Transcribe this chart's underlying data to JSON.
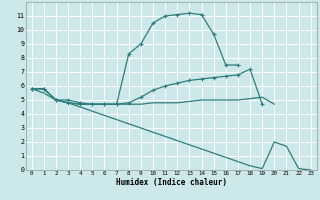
{
  "xlabel": "Humidex (Indice chaleur)",
  "bg_color": "#cce8ea",
  "grid_color": "#ffffff",
  "line_color": "#2e7d7d",
  "xlim": [
    -0.5,
    23.5
  ],
  "ylim": [
    0,
    12
  ],
  "xticks": [
    0,
    1,
    2,
    3,
    4,
    5,
    6,
    7,
    8,
    9,
    10,
    11,
    12,
    13,
    14,
    15,
    16,
    17,
    18,
    19,
    20,
    21,
    22,
    23
  ],
  "yticks": [
    0,
    1,
    2,
    3,
    4,
    5,
    6,
    7,
    8,
    9,
    10,
    11
  ],
  "line1_x": [
    0,
    1,
    2,
    3,
    4,
    5,
    6,
    7,
    8,
    9,
    10,
    11,
    12,
    13,
    14,
    15,
    16,
    17
  ],
  "line1_y": [
    5.8,
    5.8,
    5.0,
    5.0,
    4.8,
    4.7,
    4.7,
    4.7,
    8.3,
    9.0,
    10.5,
    11.0,
    11.1,
    11.2,
    11.1,
    9.7,
    7.5,
    7.5
  ],
  "line2_x": [
    0,
    1,
    2,
    3,
    4,
    5,
    6,
    7,
    8,
    9,
    10,
    11,
    12,
    13,
    14,
    15,
    16,
    17,
    18,
    19
  ],
  "line2_y": [
    5.8,
    5.8,
    5.0,
    4.8,
    4.7,
    4.7,
    4.7,
    4.7,
    4.8,
    5.2,
    5.7,
    6.0,
    6.2,
    6.4,
    6.5,
    6.6,
    6.7,
    6.8,
    7.2,
    4.7
  ],
  "line3_x": [
    0,
    1,
    2,
    3,
    4,
    5,
    6,
    7,
    8,
    9,
    10,
    11,
    12,
    13,
    14,
    15,
    16,
    17,
    18,
    19,
    20
  ],
  "line3_y": [
    5.8,
    5.5,
    5.0,
    4.8,
    4.7,
    4.7,
    4.7,
    4.7,
    4.7,
    4.7,
    4.8,
    4.8,
    4.8,
    4.9,
    5.0,
    5.0,
    5.0,
    5.0,
    5.1,
    5.2,
    4.7
  ],
  "line4_x": [
    0,
    1,
    2,
    3,
    4,
    5,
    6,
    7,
    8,
    9,
    10,
    11,
    12,
    13,
    14,
    15,
    16,
    17,
    18,
    19,
    20,
    21,
    22,
    23
  ],
  "line4_y": [
    5.8,
    5.8,
    5.0,
    4.8,
    4.5,
    4.2,
    3.9,
    3.6,
    3.3,
    3.0,
    2.7,
    2.4,
    2.1,
    1.8,
    1.5,
    1.2,
    0.9,
    0.6,
    0.3,
    0.1,
    2.0,
    1.7,
    0.1,
    0.0
  ]
}
